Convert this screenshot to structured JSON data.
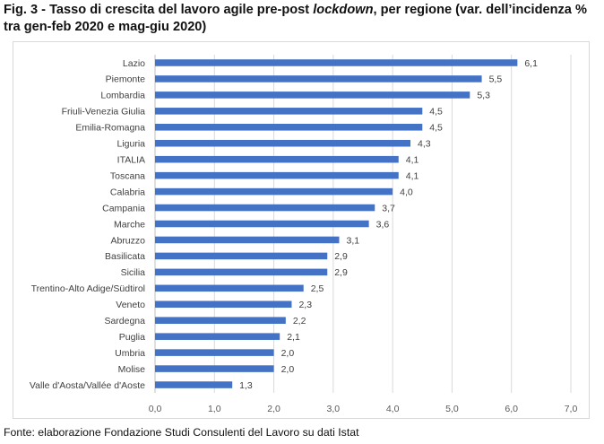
{
  "title": {
    "prefix": "Fig. 3 - Tasso di crescita del lavoro agile pre-post ",
    "italic": "lockdown",
    "suffix": ", per regione (var. dell’incidenza % tra gen-feb 2020 e mag-giu 2020)"
  },
  "source": "Fonte: elaborazione Fondazione Studi Consulenti del Lavoro su dati Istat",
  "chart_data": {
    "type": "bar",
    "orientation": "horizontal",
    "title": "Fig. 3 - Tasso di crescita del lavoro agile pre-post lockdown, per regione (var. dell’incidenza % tra gen-feb 2020 e mag-giu 2020)",
    "xlabel": "",
    "ylabel": "",
    "categories": [
      "Lazio",
      "Piemonte",
      "Lombardia",
      "Friuli-Venezia Giulia",
      "Emilia-Romagna",
      "Liguria",
      "ITALIA",
      "Toscana",
      "Calabria",
      "Campania",
      "Marche",
      "Abruzzo",
      "Basilicata",
      "Sicilia",
      "Trentino-Alto Adige/Südtirol",
      "Veneto",
      "Sardegna",
      "Puglia",
      "Umbria",
      "Molise",
      "Valle d'Aosta/Vallée d'Aoste"
    ],
    "values": [
      6.1,
      5.5,
      5.3,
      4.5,
      4.5,
      4.3,
      4.1,
      4.1,
      4.0,
      3.7,
      3.6,
      3.1,
      2.9,
      2.9,
      2.5,
      2.3,
      2.2,
      2.1,
      2.0,
      2.0,
      1.3
    ],
    "value_labels": [
      "6,1",
      "5,5",
      "5,3",
      "4,5",
      "4,5",
      "4,3",
      "4,1",
      "4,1",
      "4,0",
      "3,7",
      "3,6",
      "3,1",
      "2,9",
      "2,9",
      "2,5",
      "2,3",
      "2,2",
      "2,1",
      "2,0",
      "2,0",
      "1,3"
    ],
    "xlim": [
      0,
      7
    ],
    "xticks": [
      0,
      1,
      2,
      3,
      4,
      5,
      6,
      7
    ],
    "xtick_labels": [
      "0,0",
      "1,0",
      "2,0",
      "3,0",
      "4,0",
      "5,0",
      "6,0",
      "7,0"
    ],
    "grid": "vertical",
    "legend": "none",
    "bar_color": "#4472c4"
  }
}
